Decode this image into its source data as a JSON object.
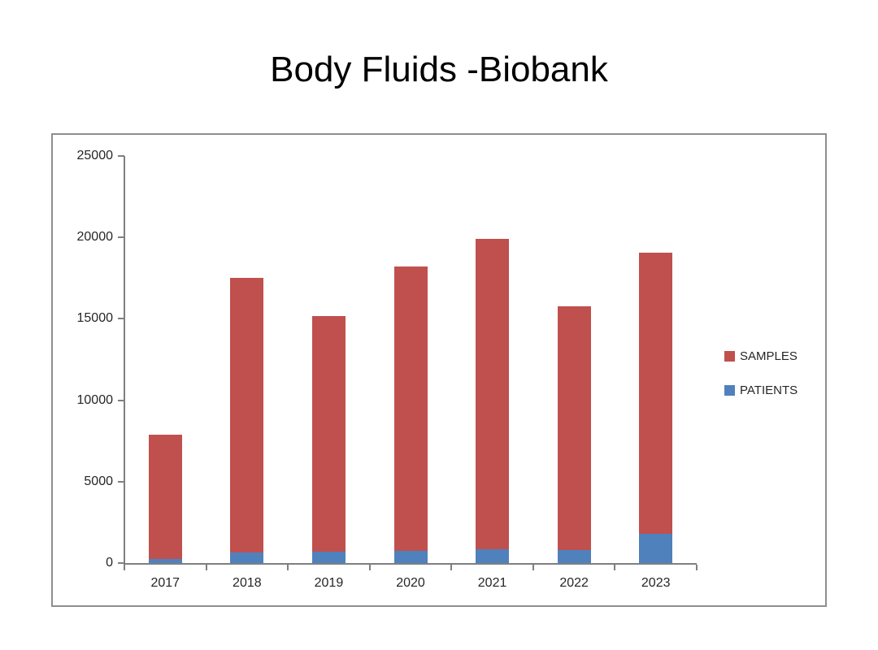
{
  "title": "Body Fluids -Biobank",
  "chart_data": {
    "type": "bar",
    "stacked": true,
    "title": "Body Fluids -Biobank",
    "xlabel": "",
    "ylabel": "",
    "categories": [
      "2017",
      "2018",
      "2019",
      "2020",
      "2021",
      "2022",
      "2023"
    ],
    "series": [
      {
        "name": "SAMPLES",
        "color": "#C0504D",
        "values": [
          7650,
          16850,
          14450,
          17450,
          19050,
          14950,
          17250
        ]
      },
      {
        "name": "PATIENTS",
        "color": "#4F81BD",
        "values": [
          250,
          650,
          700,
          750,
          850,
          800,
          1800
        ]
      }
    ],
    "stack_order_bottom_to_top": [
      "PATIENTS",
      "SAMPLES"
    ],
    "bar_totals": [
      7900,
      17500,
      15150,
      18200,
      19900,
      15750,
      19050
    ],
    "ylim": [
      0,
      25000
    ],
    "yticks": [
      0,
      5000,
      10000,
      15000,
      20000,
      25000
    ],
    "grid": false,
    "legend_position": "right",
    "legend_labels": [
      "SAMPLES",
      "PATIENTS"
    ]
  }
}
